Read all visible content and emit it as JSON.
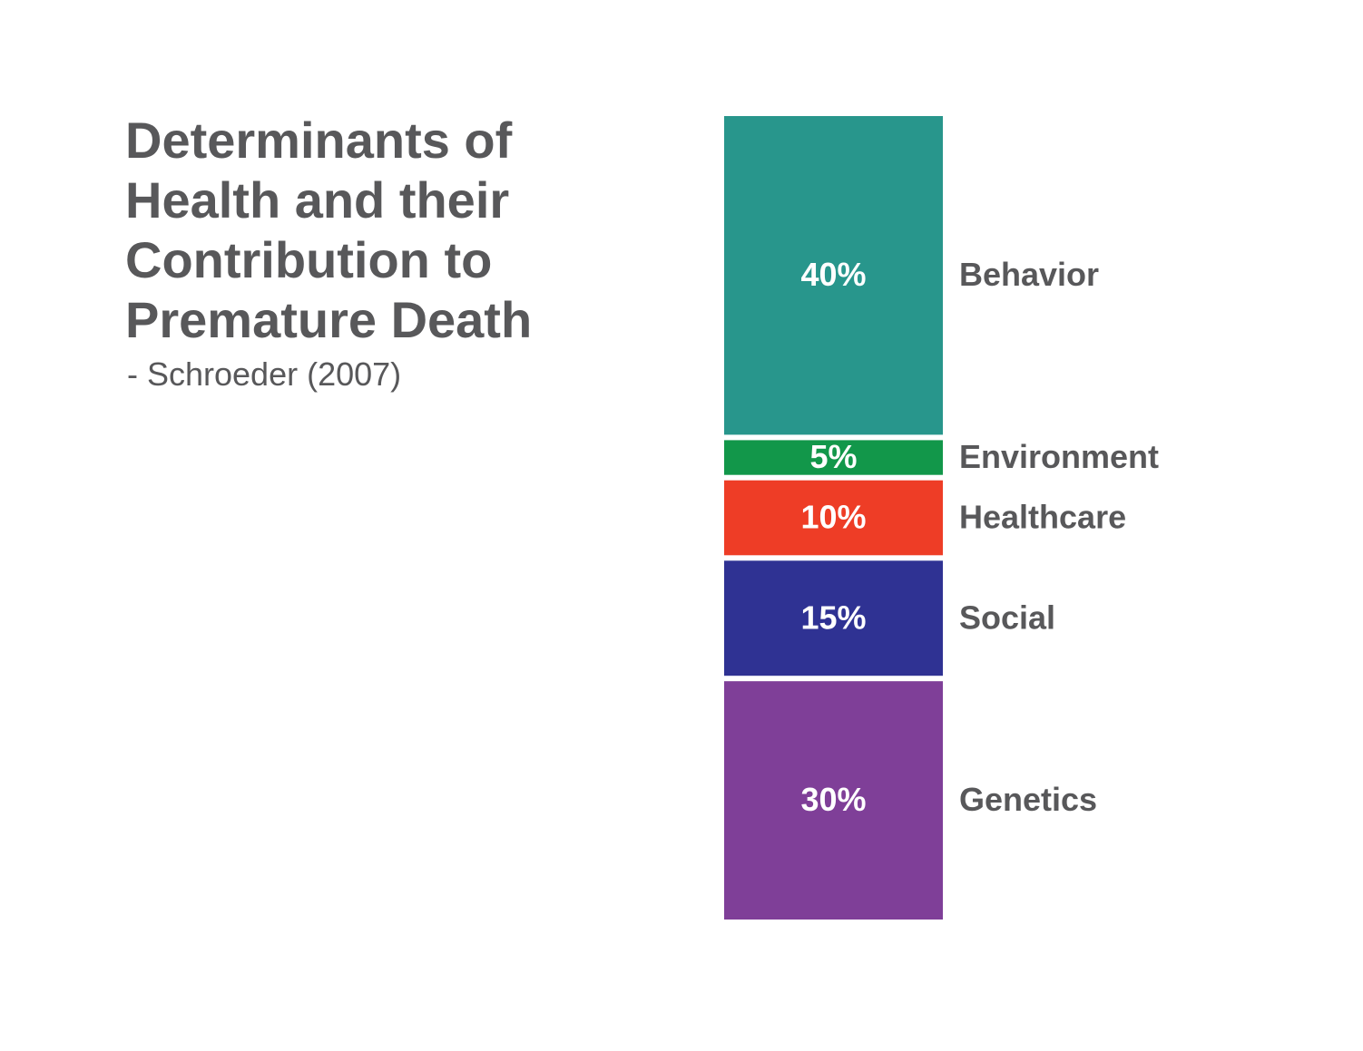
{
  "chart_data": {
    "type": "stacked-bar",
    "title": "Determinants of Health and their Contribution to Premature Death",
    "subtitle": "- Schroeder (2007)",
    "categories": [
      "Behavior",
      "Environment",
      "Healthcare",
      "Social",
      "Genetics"
    ],
    "values": [
      40,
      5,
      10,
      15,
      30
    ],
    "value_labels": [
      "40%",
      "5%",
      "10%",
      "15%",
      "30%"
    ],
    "colors": [
      "#28968c",
      "#12974a",
      "#ee3d26",
      "#2f3293",
      "#7f3f98"
    ]
  }
}
